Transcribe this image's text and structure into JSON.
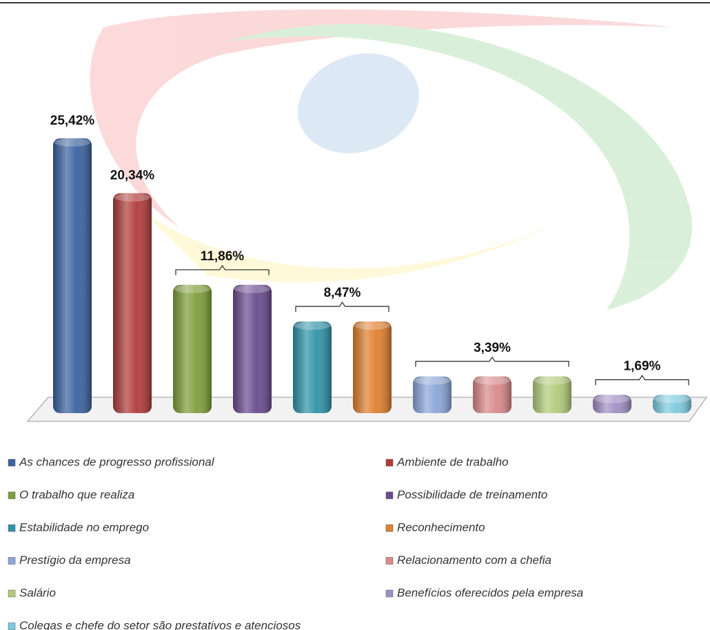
{
  "chart_data": {
    "type": "bar",
    "categories": [
      "As chances de progresso profissional",
      "Ambiente de trabalho",
      "O trabalho que realiza",
      "Possibilidade de treinamento",
      "Estabilidade no emprego",
      "Reconhecimento",
      "Prestígio da empresa",
      "Relacionamento com a chefia",
      "Salário",
      "Benefícios oferecidos pela empresa",
      "Colegas e chefe do setor são prestativos e atenciosos"
    ],
    "values": [
      25.42,
      20.34,
      11.86,
      11.86,
      8.47,
      8.47,
      3.39,
      3.39,
      3.39,
      1.69,
      1.69
    ],
    "value_labels": [
      "25,42%",
      "20,34%",
      "11,86%",
      null,
      "8,47%",
      null,
      "3,39%",
      null,
      null,
      "1,69%",
      null
    ],
    "colors": [
      "#3a62a0",
      "#b03c3a",
      "#7f9e3a",
      "#6a4b8f",
      "#2f93a8",
      "#e07f2e",
      "#8ba6d8",
      "#d98a89",
      "#b3cc7a",
      "#a08fc4",
      "#7ccbe0"
    ]
  }
}
